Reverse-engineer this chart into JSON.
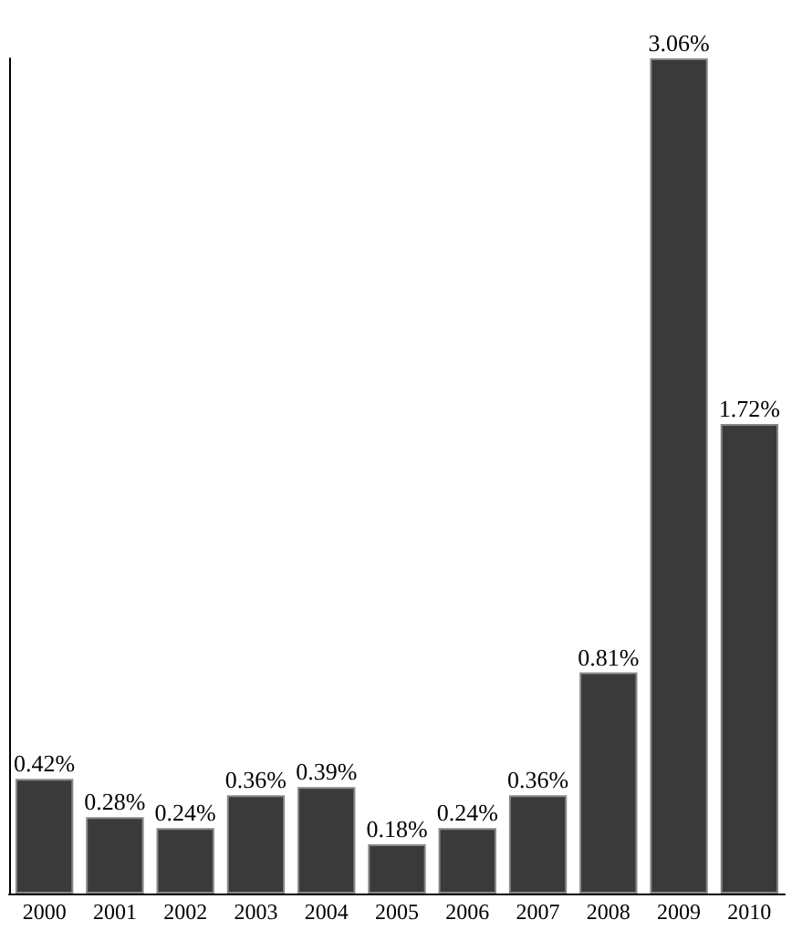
{
  "chart_data": {
    "type": "bar",
    "categories": [
      "2000",
      "2001",
      "2002",
      "2003",
      "2004",
      "2005",
      "2006",
      "2007",
      "2008",
      "2009",
      "2010"
    ],
    "values": [
      0.42,
      0.28,
      0.24,
      0.36,
      0.39,
      0.18,
      0.24,
      0.36,
      0.81,
      3.06,
      1.72
    ],
    "value_labels": [
      "0.42%",
      "0.28%",
      "0.24%",
      "0.36%",
      "0.39%",
      "0.18%",
      "0.24%",
      "0.36%",
      "0.81%",
      "3.06%",
      "1.72%"
    ],
    "color": "#3a3a3a"
  }
}
